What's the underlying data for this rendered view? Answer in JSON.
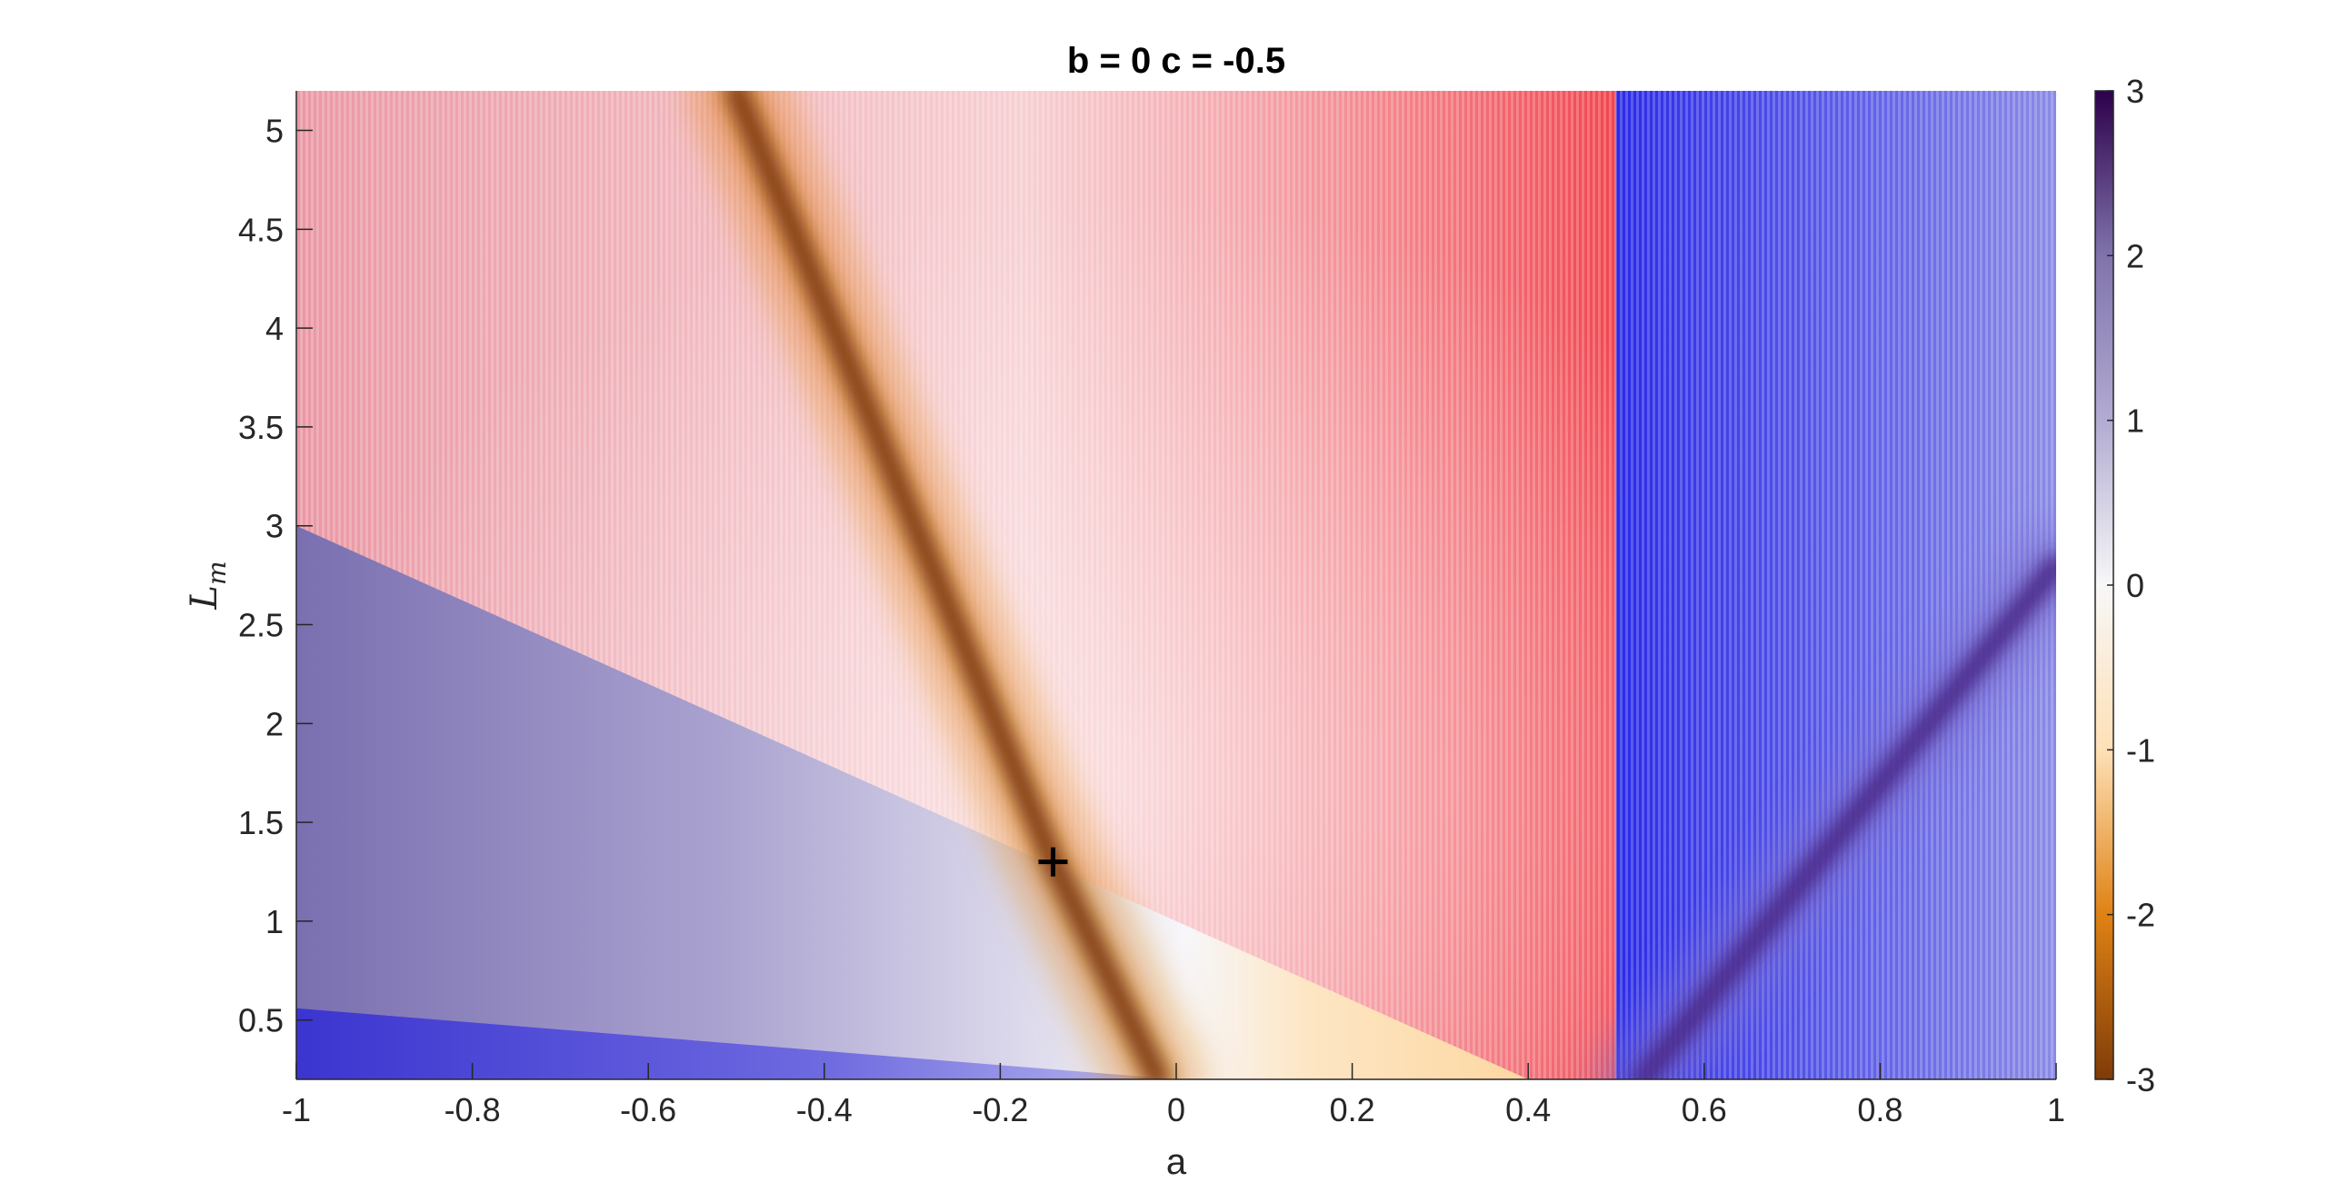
{
  "chart_data": {
    "type": "heatmap",
    "title": "b = 0 c = -0.5",
    "xlabel": "a",
    "ylabel": "L",
    "ylabel_subscript": "m",
    "xlim": [
      -1,
      1
    ],
    "ylim": [
      0.2,
      5.2
    ],
    "xticks": [
      "-1",
      "-0.8",
      "-0.6",
      "-0.4",
      "-0.2",
      "0",
      "0.2",
      "0.4",
      "0.6",
      "0.8",
      "1"
    ],
    "xtick_values": [
      -1,
      -0.8,
      -0.6,
      -0.4,
      -0.2,
      0,
      0.2,
      0.4,
      0.6,
      0.8,
      1
    ],
    "yticks": [
      "0.5",
      "1",
      "1.5",
      "2",
      "2.5",
      "3",
      "3.5",
      "4",
      "4.5",
      "5"
    ],
    "ytick_values": [
      0.5,
      1,
      1.5,
      2,
      2.5,
      3,
      3.5,
      4,
      4.5,
      5
    ],
    "colorbar": {
      "range": [
        -3,
        3
      ],
      "ticks": [
        "3",
        "2",
        "1",
        "0",
        "-1",
        "-2",
        "-3"
      ],
      "tick_values": [
        3,
        2,
        1,
        0,
        -1,
        -2,
        -3
      ],
      "colors_low_to_high": [
        "#7f3b08",
        "#e08214",
        "#fee0b6",
        "#f7f7f7",
        "#b2abd2",
        "#8073ac",
        "#2d004b"
      ]
    },
    "regions": {
      "red_striped_color": "#f03c46",
      "blue_striped_color": "#2828e6",
      "vertical_boundary_a": 0.5,
      "diagonal_boundary_through": [
        [
          -1,
          3.0
        ],
        [
          0.4,
          0.2
        ]
      ],
      "lower_boundary_through": [
        [
          -1,
          0.56
        ],
        [
          0,
          0.2
        ]
      ]
    },
    "ridges": [
      {
        "name": "",
        "points": [
          [
            -0.5,
            5.2
          ],
          [
            -0.14,
            1.3
          ],
          [
            -0.02,
            0.2
          ]
        ],
        "color": "#7f3b08"
      },
      {
        "name": "",
        "points": [
          [
            0.53,
            0.2
          ],
          [
            1.0,
            2.8
          ]
        ],
        "color": "#4b2a8a"
      }
    ],
    "marker": {
      "type": "plus",
      "a": -0.14,
      "L": 1.3,
      "color": "#000000"
    }
  }
}
